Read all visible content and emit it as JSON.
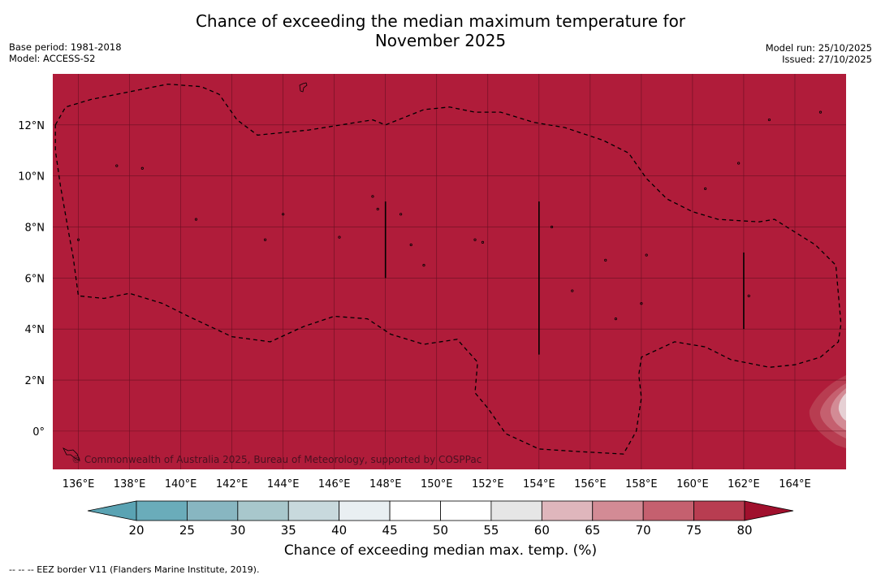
{
  "title_line1": "Chance of exceeding the median maximum temperature for",
  "title_line2": "November 2025",
  "base_period": "Base period: 1981-2018",
  "model": "Model: ACCESS-S2",
  "model_run": "Model run: 25/10/2025",
  "issued": "Issued: 27/10/2025",
  "copyright": "© Commonwealth of Australia 2025, Bureau of Meteorology, supported by COSPPac",
  "footer_note": "--  --  -- EEZ border V11 (Flanders Marine Institute, 2019).",
  "colorbar_label": "Chance of exceeding median max. temp. (%)",
  "colors": {
    "map_fill": "#b01c3a",
    "low_extend": "#5aa3b3",
    "high_extend": "#a0102d"
  },
  "chart_data": {
    "type": "heatmap",
    "map_extent": {
      "lon_min": 135.0,
      "lon_max": 166.0,
      "lat_min": -1.5,
      "lat_max": 14.0
    },
    "lon_ticks": [
      136,
      138,
      140,
      142,
      144,
      146,
      148,
      150,
      152,
      154,
      156,
      158,
      160,
      162,
      164
    ],
    "lon_tick_labels": [
      "136°E",
      "138°E",
      "140°E",
      "142°E",
      "144°E",
      "146°E",
      "148°E",
      "150°E",
      "152°E",
      "154°E",
      "156°E",
      "158°E",
      "160°E",
      "162°E",
      "164°E"
    ],
    "lat_ticks": [
      0,
      2,
      4,
      6,
      8,
      10,
      12
    ],
    "lat_tick_labels": [
      "0°",
      "2°N",
      "4°N",
      "6°N",
      "8°N",
      "10°N",
      "12°N"
    ],
    "dominant_value": ">80",
    "colorbar": {
      "ticks": [
        20,
        25,
        30,
        35,
        40,
        45,
        50,
        55,
        60,
        65,
        70,
        75,
        80
      ],
      "tick_labels": [
        "20",
        "25",
        "30",
        "35",
        "40",
        "45",
        "50",
        "55",
        "60",
        "65",
        "70",
        "75",
        "80"
      ],
      "bin_colors": [
        "#6aacba",
        "#88b6c1",
        "#a8c7cc",
        "#c8d9dd",
        "#e9eff2",
        "#ffffff",
        "#ffffff",
        "#e6e6e6",
        "#dfb6bc",
        "#d38b95",
        "#c5606f",
        "#b83d51"
      ]
    },
    "eez_border": [
      [
        135.1,
        12.0
      ],
      [
        135.5,
        12.7
      ],
      [
        136.5,
        13.0
      ],
      [
        138.0,
        13.3
      ],
      [
        139.5,
        13.6
      ],
      [
        140.8,
        13.5
      ],
      [
        141.5,
        13.2
      ],
      [
        142.2,
        12.2
      ],
      [
        143.0,
        11.6
      ],
      [
        145.0,
        11.8
      ],
      [
        147.5,
        12.2
      ],
      [
        148.0,
        12.0
      ],
      [
        149.5,
        12.6
      ],
      [
        150.5,
        12.7
      ],
      [
        151.5,
        12.5
      ],
      [
        152.5,
        12.5
      ],
      [
        153.8,
        12.1
      ],
      [
        155.0,
        11.9
      ],
      [
        156.5,
        11.4
      ],
      [
        157.5,
        10.9
      ],
      [
        158.2,
        9.9
      ],
      [
        159.0,
        9.1
      ],
      [
        160.0,
        8.6
      ],
      [
        161.0,
        8.3
      ],
      [
        162.6,
        8.2
      ],
      [
        163.2,
        8.3
      ],
      [
        164.8,
        7.3
      ],
      [
        165.6,
        6.5
      ],
      [
        165.8,
        4.2
      ],
      [
        165.7,
        3.5
      ],
      [
        165.0,
        2.9
      ],
      [
        164.0,
        2.6
      ],
      [
        163.0,
        2.5
      ],
      [
        161.5,
        2.8
      ],
      [
        160.5,
        3.3
      ],
      [
        159.3,
        3.5
      ],
      [
        158.0,
        2.9
      ],
      [
        157.9,
        2.2
      ],
      [
        158.0,
        1.3
      ],
      [
        157.8,
        0.0
      ],
      [
        157.3,
        -0.9
      ],
      [
        155.5,
        -0.8
      ],
      [
        154.0,
        -0.7
      ],
      [
        152.7,
        -0.1
      ],
      [
        152.0,
        0.9
      ],
      [
        151.5,
        1.5
      ],
      [
        151.6,
        2.7
      ],
      [
        150.8,
        3.6
      ],
      [
        149.5,
        3.4
      ],
      [
        148.2,
        3.8
      ],
      [
        147.3,
        4.4
      ],
      [
        146.0,
        4.5
      ],
      [
        144.8,
        4.1
      ],
      [
        143.5,
        3.5
      ],
      [
        142.0,
        3.7
      ],
      [
        140.3,
        4.5
      ],
      [
        139.3,
        5.0
      ],
      [
        138.0,
        5.4
      ],
      [
        137.0,
        5.2
      ],
      [
        136.0,
        5.3
      ],
      [
        135.8,
        6.8
      ],
      [
        135.6,
        7.9
      ],
      [
        135.3,
        9.6
      ],
      [
        135.1,
        11.0
      ],
      [
        135.1,
        12.0
      ]
    ],
    "islands": [
      [
        147.5,
        9.2
      ],
      [
        147.7,
        8.7
      ],
      [
        148.6,
        8.5
      ],
      [
        151.5,
        7.5
      ],
      [
        151.8,
        7.4
      ],
      [
        154.5,
        8.0
      ],
      [
        155.3,
        5.5
      ],
      [
        156.6,
        6.7
      ],
      [
        157.0,
        4.4
      ],
      [
        158.0,
        5.0
      ],
      [
        158.2,
        6.9
      ],
      [
        160.5,
        9.5
      ],
      [
        161.8,
        10.5
      ],
      [
        162.2,
        5.3
      ],
      [
        163.0,
        12.2
      ],
      [
        165.0,
        12.5
      ],
      [
        136.0,
        7.5
      ],
      [
        137.5,
        10.4
      ],
      [
        138.5,
        10.3
      ],
      [
        140.6,
        8.3
      ],
      [
        143.3,
        7.5
      ],
      [
        144.0,
        8.5
      ],
      [
        146.2,
        7.6
      ],
      [
        149.0,
        7.3
      ],
      [
        149.5,
        6.5
      ]
    ]
  }
}
